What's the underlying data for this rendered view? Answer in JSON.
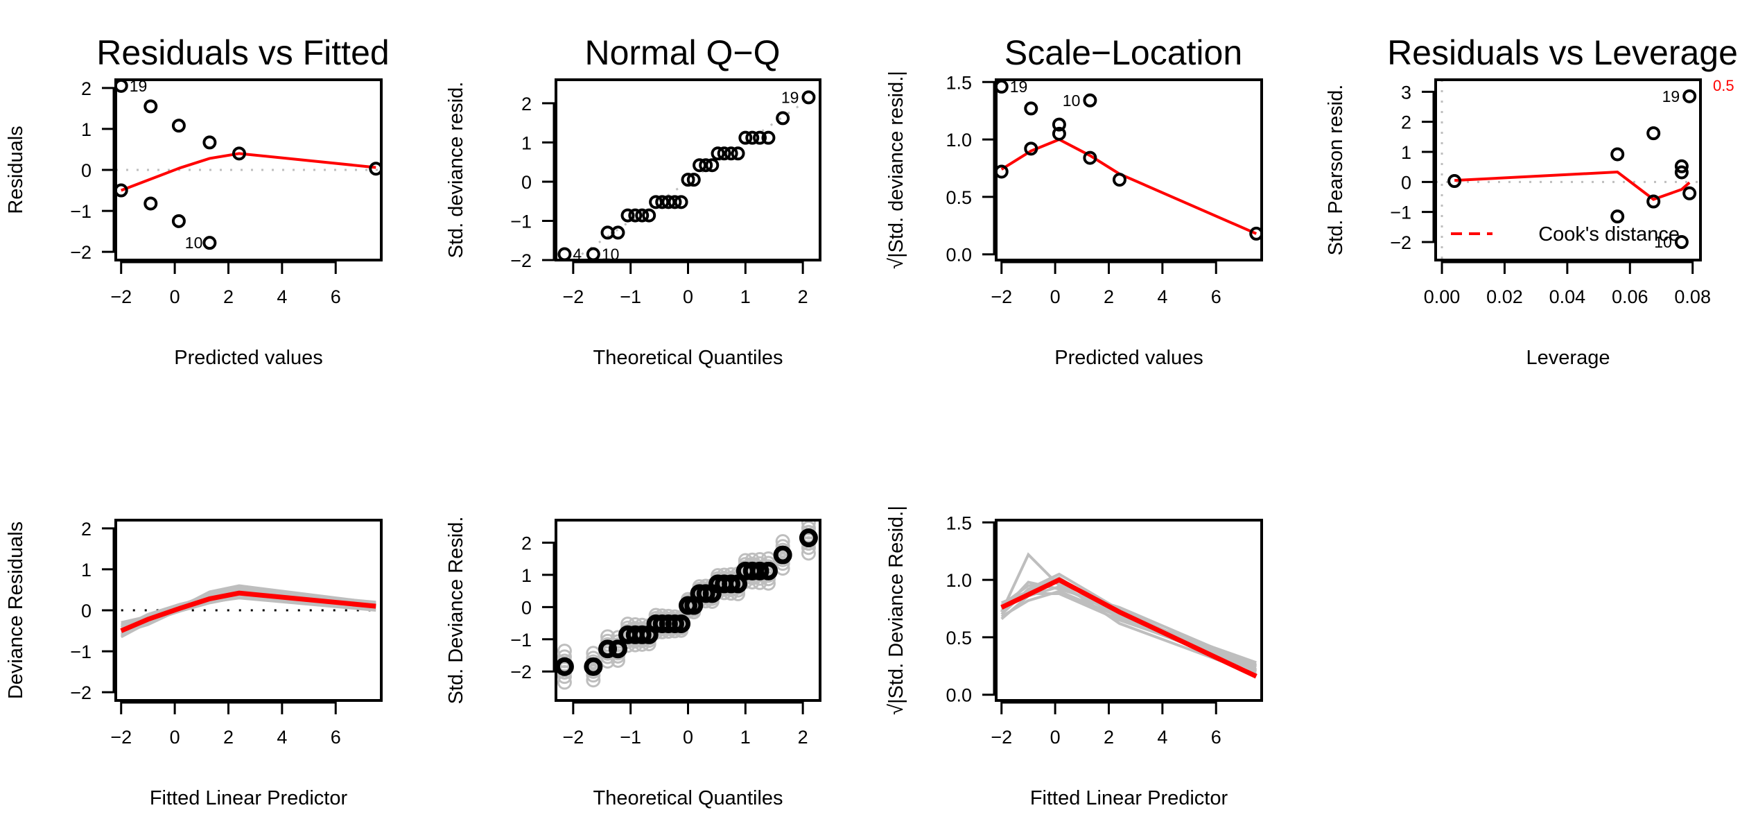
{
  "colors": {
    "points": "#000000",
    "smooth": "#ff0000",
    "reference": "#bebebe",
    "simulated": "#bebebe"
  },
  "chart_data": [
    {
      "id": "p1",
      "type": "scatter",
      "title": "Residuals vs Fitted",
      "xlabel": "Predicted values",
      "ylabel": "Residuals",
      "xlim": [
        -2.2,
        7.7
      ],
      "ylim": [
        -2.2,
        2.2
      ],
      "xticks": [
        -2,
        0,
        2,
        4,
        6
      ],
      "yticks": [
        -2,
        -1,
        0,
        1,
        2
      ],
      "points": [
        [
          -2.0,
          2.05
        ],
        [
          -2.0,
          -0.5
        ],
        [
          -0.9,
          1.55
        ],
        [
          -0.9,
          -0.82
        ],
        [
          0.15,
          1.08
        ],
        [
          0.15,
          -1.25
        ],
        [
          1.3,
          0.67
        ],
        [
          1.3,
          -1.78
        ],
        [
          2.4,
          0.4
        ],
        [
          7.5,
          0.03
        ]
      ],
      "labels": [
        {
          "x": -2.0,
          "y": 2.05,
          "text": "19"
        },
        {
          "x": 1.3,
          "y": -1.78,
          "text": "10"
        }
      ],
      "smooth": [
        [
          -2.0,
          -0.5
        ],
        [
          -1.0,
          -0.25
        ],
        [
          0.2,
          0.05
        ],
        [
          1.3,
          0.28
        ],
        [
          2.4,
          0.4
        ],
        [
          7.5,
          0.06
        ]
      ],
      "hline": 0
    },
    {
      "id": "p2",
      "type": "scatter",
      "title": "Normal Q−Q",
      "xlabel": "Theoretical Quantiles",
      "ylabel": "Std. deviance resid.",
      "xlim": [
        -2.3,
        2.3
      ],
      "ylim": [
        -2.0,
        2.6
      ],
      "xticks": [
        -2,
        -1,
        0,
        1,
        2
      ],
      "yticks": [
        -2,
        -1,
        0,
        1,
        2
      ],
      "points": [
        [
          -2.15,
          -1.85
        ],
        [
          -1.65,
          -1.85
        ],
        [
          -1.4,
          -1.3
        ],
        [
          -1.22,
          -1.3
        ],
        [
          -1.05,
          -0.86
        ],
        [
          -0.92,
          -0.86
        ],
        [
          -0.8,
          -0.86
        ],
        [
          -0.68,
          -0.86
        ],
        [
          -0.56,
          -0.52
        ],
        [
          -0.45,
          -0.52
        ],
        [
          -0.34,
          -0.52
        ],
        [
          -0.23,
          -0.52
        ],
        [
          -0.12,
          -0.52
        ],
        [
          0.0,
          0.05
        ],
        [
          0.1,
          0.05
        ],
        [
          0.2,
          0.42
        ],
        [
          0.31,
          0.42
        ],
        [
          0.42,
          0.42
        ],
        [
          0.52,
          0.72
        ],
        [
          0.63,
          0.72
        ],
        [
          0.75,
          0.72
        ],
        [
          0.87,
          0.72
        ],
        [
          1.0,
          1.12
        ],
        [
          1.12,
          1.12
        ],
        [
          1.25,
          1.12
        ],
        [
          1.4,
          1.12
        ],
        [
          1.65,
          1.62
        ],
        [
          2.1,
          2.15
        ]
      ],
      "labels": [
        {
          "x": 2.1,
          "y": 2.15,
          "text": "19"
        },
        {
          "x": -2.15,
          "y": -1.85,
          "text": "4"
        },
        {
          "x": -1.65,
          "y": -1.85,
          "text": "10"
        }
      ],
      "refline": {
        "slope": 1.0,
        "intercept": 0.0
      }
    },
    {
      "id": "p3",
      "type": "scatter",
      "title": "Scale−Location",
      "xlabel": "Predicted values",
      "ylabel": "√|Std. deviance resid.|",
      "xlim": [
        -2.2,
        7.7
      ],
      "ylim": [
        -0.05,
        1.52
      ],
      "xticks": [
        -2,
        0,
        2,
        4,
        6
      ],
      "yticks": [
        0.0,
        0.5,
        1.0,
        1.5
      ],
      "points": [
        [
          -2.0,
          1.46
        ],
        [
          -2.0,
          0.72
        ],
        [
          -0.9,
          1.27
        ],
        [
          -0.9,
          0.92
        ],
        [
          0.15,
          1.05
        ],
        [
          0.15,
          1.13
        ],
        [
          1.3,
          1.34
        ],
        [
          1.3,
          0.84
        ],
        [
          2.4,
          0.65
        ],
        [
          7.5,
          0.18
        ]
      ],
      "labels": [
        {
          "x": -2.0,
          "y": 1.46,
          "text": "19"
        },
        {
          "x": 1.3,
          "y": 1.34,
          "text": "10"
        }
      ],
      "smooth": [
        [
          -2.0,
          0.74
        ],
        [
          -0.9,
          0.9
        ],
        [
          0.15,
          1.0
        ],
        [
          1.3,
          0.86
        ],
        [
          2.4,
          0.7
        ],
        [
          7.5,
          0.18
        ]
      ]
    },
    {
      "id": "p4",
      "type": "scatter",
      "title": "Residuals vs Leverage",
      "xlabel": "Leverage",
      "ylabel": "Std. Pearson resid.",
      "xlim": [
        -0.002,
        0.0825
      ],
      "ylim": [
        -2.6,
        3.4
      ],
      "xticks": [
        0.0,
        0.02,
        0.04,
        0.06,
        0.08
      ],
      "xtick_labels": [
        "0.00",
        "0.02",
        "0.04",
        "0.06",
        "0.08"
      ],
      "yticks": [
        -2,
        -1,
        0,
        1,
        2,
        3
      ],
      "points": [
        [
          0.004,
          0.03
        ],
        [
          0.056,
          0.92
        ],
        [
          0.056,
          -1.15
        ],
        [
          0.0675,
          1.62
        ],
        [
          0.0675,
          -0.65
        ],
        [
          0.0765,
          0.52
        ],
        [
          0.0765,
          0.32
        ],
        [
          0.0765,
          -2.0
        ],
        [
          0.079,
          2.85
        ],
        [
          0.079,
          -0.38
        ]
      ],
      "labels": [
        {
          "x": 0.079,
          "y": 2.85,
          "text": "19"
        },
        {
          "x": 0.0765,
          "y": -2.0,
          "text": "10"
        }
      ],
      "smooth": [
        [
          0.004,
          0.05
        ],
        [
          0.056,
          0.33
        ],
        [
          0.0675,
          -0.58
        ],
        [
          0.0765,
          -0.25
        ],
        [
          0.079,
          -0.02
        ]
      ],
      "hline": 0,
      "vline": 0,
      "cook_label": "0.5",
      "legend": {
        "text": "Cook's distance",
        "position": "bottom-right"
      }
    },
    {
      "id": "p5",
      "type": "line",
      "title": "",
      "xlabel": "Fitted Linear Predictor",
      "ylabel": "Deviance Residuals",
      "xlim": [
        -2.2,
        7.7
      ],
      "ylim": [
        -2.2,
        2.2
      ],
      "xticks": [
        -2,
        0,
        2,
        4,
        6
      ],
      "yticks": [
        -2,
        -1,
        0,
        1,
        2
      ],
      "main_line": [
        [
          -2.0,
          -0.5
        ],
        [
          -1.0,
          -0.22
        ],
        [
          0.2,
          0.05
        ],
        [
          1.3,
          0.28
        ],
        [
          2.4,
          0.42
        ],
        [
          7.5,
          0.1
        ]
      ],
      "simulated_lines": [
        [
          [
            -2.0,
            -0.35
          ],
          [
            -1.0,
            -0.18
          ],
          [
            0.2,
            0.12
          ],
          [
            1.3,
            0.4
          ],
          [
            2.4,
            0.55
          ],
          [
            7.5,
            0.15
          ]
        ],
        [
          [
            -2.0,
            -0.65
          ],
          [
            -1.0,
            -0.3
          ],
          [
            0.2,
            0.0
          ],
          [
            1.3,
            0.2
          ],
          [
            2.4,
            0.3
          ],
          [
            7.5,
            0.0
          ]
        ],
        [
          [
            -2.0,
            -0.42
          ],
          [
            -1.0,
            -0.1
          ],
          [
            0.2,
            0.15
          ],
          [
            1.3,
            0.32
          ],
          [
            2.4,
            0.5
          ],
          [
            7.5,
            0.2
          ]
        ],
        [
          [
            -2.0,
            -0.55
          ],
          [
            -1.0,
            -0.35
          ],
          [
            0.2,
            0.02
          ],
          [
            1.3,
            0.25
          ],
          [
            2.4,
            0.35
          ],
          [
            7.5,
            0.05
          ]
        ],
        [
          [
            -2.0,
            -0.3
          ],
          [
            -1.0,
            -0.15
          ],
          [
            0.2,
            0.08
          ],
          [
            1.3,
            0.45
          ],
          [
            2.4,
            0.6
          ],
          [
            7.5,
            0.18
          ]
        ],
        [
          [
            -2.0,
            -0.48
          ],
          [
            -1.0,
            -0.28
          ],
          [
            0.2,
            -0.02
          ],
          [
            1.3,
            0.18
          ],
          [
            2.4,
            0.32
          ],
          [
            7.5,
            0.12
          ]
        ],
        [
          [
            -2.0,
            -0.38
          ],
          [
            -1.0,
            -0.2
          ],
          [
            0.2,
            0.1
          ],
          [
            1.3,
            0.38
          ],
          [
            2.4,
            0.45
          ],
          [
            7.5,
            0.08
          ]
        ],
        [
          [
            -2.0,
            -0.6
          ],
          [
            -1.0,
            -0.25
          ],
          [
            0.2,
            0.05
          ],
          [
            1.3,
            0.22
          ],
          [
            2.4,
            0.38
          ],
          [
            7.5,
            0.14
          ]
        ]
      ],
      "hline": 0
    },
    {
      "id": "p6",
      "type": "scatter",
      "title": "",
      "xlabel": "Theoretical Quantiles",
      "ylabel": "Std. Deviance Resid.",
      "xlim": [
        -2.3,
        2.3
      ],
      "ylim": [
        -2.9,
        2.7
      ],
      "xticks": [
        -2,
        -1,
        0,
        1,
        2
      ],
      "yticks": [
        -2,
        -1,
        0,
        1,
        2
      ],
      "points": [
        [
          -2.15,
          -1.85
        ],
        [
          -1.65,
          -1.85
        ],
        [
          -1.4,
          -1.3
        ],
        [
          -1.22,
          -1.3
        ],
        [
          -1.05,
          -0.86
        ],
        [
          -0.92,
          -0.86
        ],
        [
          -0.8,
          -0.86
        ],
        [
          -0.68,
          -0.86
        ],
        [
          -0.56,
          -0.52
        ],
        [
          -0.45,
          -0.52
        ],
        [
          -0.34,
          -0.52
        ],
        [
          -0.23,
          -0.52
        ],
        [
          -0.12,
          -0.52
        ],
        [
          0.0,
          0.05
        ],
        [
          0.1,
          0.05
        ],
        [
          0.2,
          0.42
        ],
        [
          0.31,
          0.42
        ],
        [
          0.42,
          0.42
        ],
        [
          0.52,
          0.72
        ],
        [
          0.63,
          0.72
        ],
        [
          0.75,
          0.72
        ],
        [
          0.87,
          0.72
        ],
        [
          1.0,
          1.12
        ],
        [
          1.12,
          1.12
        ],
        [
          1.25,
          1.12
        ],
        [
          1.4,
          1.12
        ],
        [
          1.65,
          1.62
        ],
        [
          2.1,
          2.15
        ]
      ],
      "simulated_offsets": [
        -0.55,
        -0.35,
        -0.2,
        -0.08,
        0.08,
        0.2,
        0.35,
        0.55
      ]
    },
    {
      "id": "p7",
      "type": "line",
      "title": "",
      "xlabel": "Fitted Linear Predictor",
      "ylabel": "√|Std. Deviance Resid.|",
      "xlim": [
        -2.2,
        7.7
      ],
      "ylim": [
        -0.05,
        1.52
      ],
      "xticks": [
        -2,
        0,
        2,
        4,
        6
      ],
      "yticks": [
        0.0,
        0.5,
        1.0,
        1.5
      ],
      "main_line": [
        [
          -2.0,
          0.76
        ],
        [
          0.15,
          1.0
        ],
        [
          2.4,
          0.72
        ],
        [
          7.5,
          0.16
        ]
      ],
      "simulated_lines": [
        [
          [
            -2.0,
            0.72
          ],
          [
            -1.0,
            1.22
          ],
          [
            0.15,
            0.95
          ],
          [
            2.4,
            0.7
          ],
          [
            7.5,
            0.22
          ]
        ],
        [
          [
            -2.0,
            0.68
          ],
          [
            -1.0,
            0.82
          ],
          [
            0.15,
            0.9
          ],
          [
            2.4,
            0.68
          ],
          [
            7.5,
            0.26
          ]
        ],
        [
          [
            -2.0,
            0.7
          ],
          [
            -1.0,
            0.92
          ],
          [
            0.15,
            1.05
          ],
          [
            2.4,
            0.74
          ],
          [
            7.5,
            0.2
          ]
        ],
        [
          [
            -2.0,
            0.75
          ],
          [
            -1.0,
            0.88
          ],
          [
            0.15,
            0.88
          ],
          [
            2.4,
            0.65
          ],
          [
            7.5,
            0.24
          ]
        ],
        [
          [
            -2.0,
            0.78
          ],
          [
            -1.0,
            0.95
          ],
          [
            0.15,
            0.98
          ],
          [
            2.4,
            0.62
          ],
          [
            7.5,
            0.18
          ]
        ],
        [
          [
            -2.0,
            0.66
          ],
          [
            -1.0,
            0.86
          ],
          [
            0.15,
            0.94
          ],
          [
            2.4,
            0.7
          ],
          [
            7.5,
            0.28
          ]
        ],
        [
          [
            -2.0,
            0.73
          ],
          [
            -1.0,
            0.98
          ],
          [
            0.15,
            0.92
          ],
          [
            2.4,
            0.76
          ],
          [
            7.5,
            0.25
          ]
        ],
        [
          [
            -2.0,
            0.8
          ],
          [
            -1.0,
            0.9
          ],
          [
            0.15,
            1.02
          ],
          [
            2.4,
            0.66
          ],
          [
            7.5,
            0.21
          ]
        ]
      ]
    }
  ]
}
